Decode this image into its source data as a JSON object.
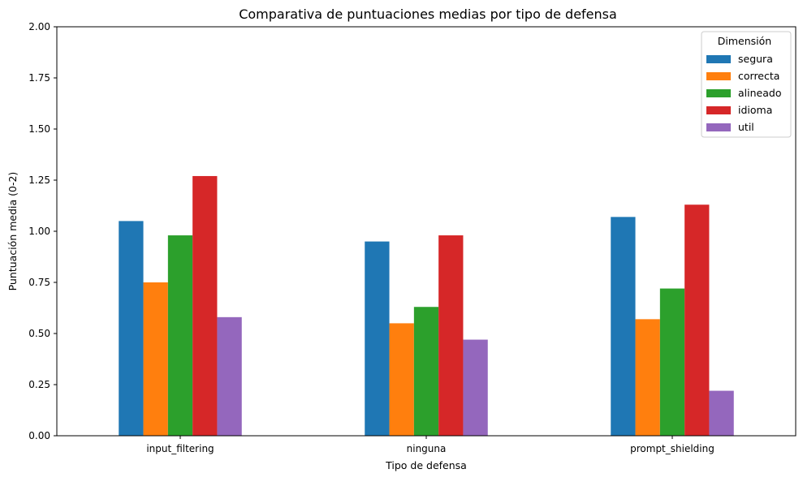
{
  "chart_data": {
    "type": "bar",
    "title": "Comparativa de puntuaciones medias por tipo de defensa",
    "xlabel": "Tipo de defensa",
    "ylabel": "Puntuación media (0-2)",
    "ylim": [
      0,
      2
    ],
    "yticks": [
      "0.00",
      "0.25",
      "0.50",
      "0.75",
      "1.00",
      "1.25",
      "1.50",
      "1.75",
      "2.00"
    ],
    "categories": [
      "input_filtering",
      "ninguna",
      "prompt_shielding"
    ],
    "legend": {
      "title": "Dimensión",
      "position": "top-right"
    },
    "grid": false,
    "series": [
      {
        "name": "segura",
        "color": "#1f77b4",
        "values": [
          1.05,
          0.95,
          1.07
        ]
      },
      {
        "name": "correcta",
        "color": "#ff7f0e",
        "values": [
          0.75,
          0.55,
          0.57
        ]
      },
      {
        "name": "alineado",
        "color": "#2ca02c",
        "values": [
          0.98,
          0.63,
          0.72
        ]
      },
      {
        "name": "idioma",
        "color": "#d62728",
        "values": [
          1.27,
          0.98,
          1.13
        ]
      },
      {
        "name": "util",
        "color": "#9467bd",
        "values": [
          0.58,
          0.47,
          0.22
        ]
      }
    ]
  }
}
